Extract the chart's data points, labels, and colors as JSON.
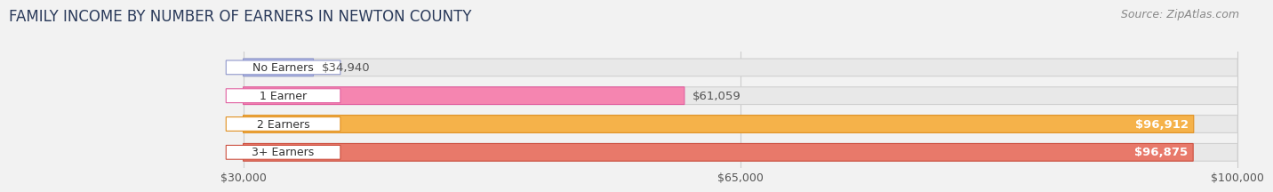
{
  "title": "FAMILY INCOME BY NUMBER OF EARNERS IN NEWTON COUNTY",
  "source": "Source: ZipAtlas.com",
  "categories": [
    "No Earners",
    "1 Earner",
    "2 Earners",
    "3+ Earners"
  ],
  "values": [
    34940,
    61059,
    96912,
    96875
  ],
  "labels": [
    "$34,940",
    "$61,059",
    "$96,912",
    "$96,875"
  ],
  "bar_colors": [
    "#b0b8e8",
    "#f585b0",
    "#f5b24a",
    "#e8796a"
  ],
  "bar_edge_colors": [
    "#9098cc",
    "#e060a0",
    "#e09020",
    "#cc5040"
  ],
  "label_inside": [
    false,
    false,
    true,
    true
  ],
  "xmin": 30000,
  "xmax": 100000,
  "xticks": [
    30000,
    65000,
    100000
  ],
  "xtick_labels": [
    "$30,000",
    "$65,000",
    "$100,000"
  ],
  "bg_color": "#f2f2f2",
  "bar_bg_color": "#e8e8e8",
  "bar_bg_edge": "#d0d0d0",
  "title_fontsize": 12,
  "source_fontsize": 9,
  "label_fontsize": 9.5,
  "tick_fontsize": 9,
  "title_color": "#2a3a5a",
  "source_color": "#888888"
}
